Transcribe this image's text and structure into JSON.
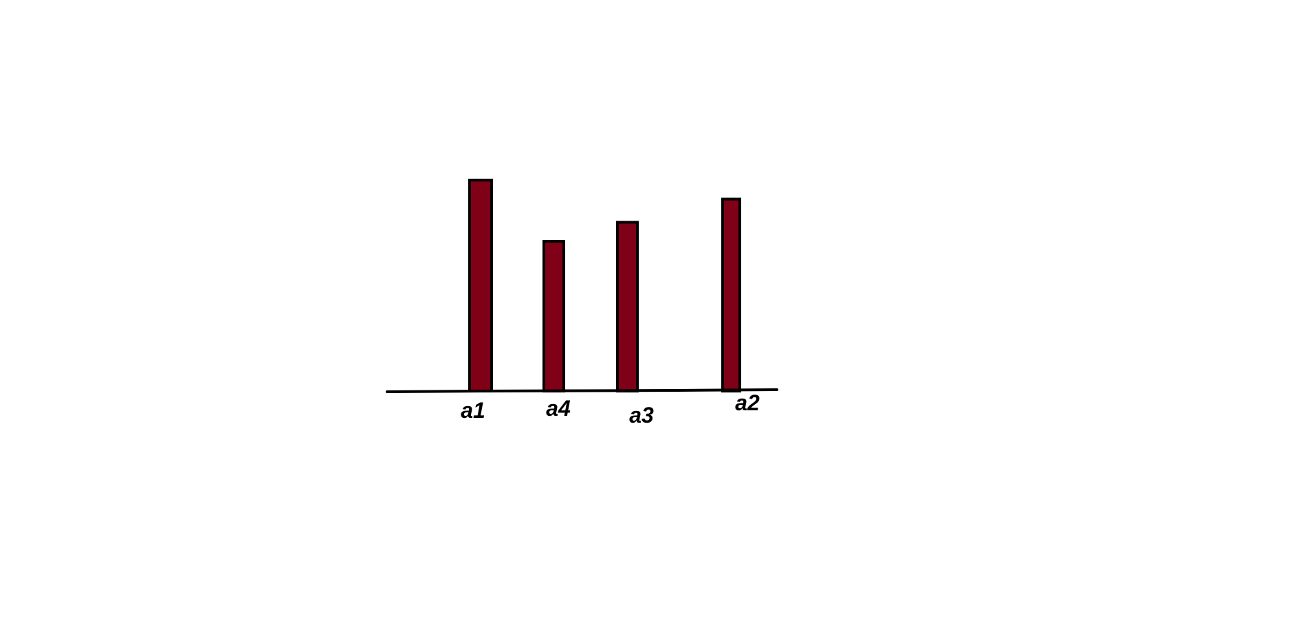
{
  "chart_data": {
    "type": "bar",
    "categories": [
      "a1",
      "a4",
      "a3",
      "a2"
    ],
    "values": [
      100,
      71,
      80,
      91
    ],
    "ylim": [
      0,
      100
    ],
    "grid": false,
    "legend": "none"
  },
  "colors": {
    "bar_fill": "#800018",
    "bar_stroke": "#000000",
    "axis": "#000000",
    "background": "#ffffff"
  }
}
